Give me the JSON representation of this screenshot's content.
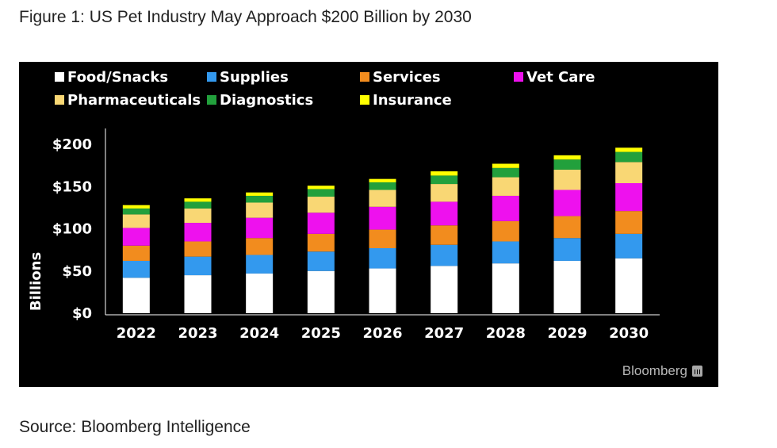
{
  "figure_title": "Figure 1: US Pet Industry May Approach $200 Billion by 2030",
  "source": "Source: Bloomberg Intelligence",
  "brand": "Bloomberg",
  "chart_data": {
    "type": "bar",
    "stacked": true,
    "title": "",
    "xlabel": "",
    "ylabel": "Billions",
    "ylim": [
      0,
      200
    ],
    "y_ticks": [
      0,
      50,
      100,
      150,
      200
    ],
    "y_tick_labels": [
      "$0",
      "$50",
      "$100",
      "$150",
      "$200"
    ],
    "categories": [
      "2022",
      "2023",
      "2024",
      "2025",
      "2026",
      "2027",
      "2028",
      "2029",
      "2030"
    ],
    "legend_position": "top",
    "series": [
      {
        "name": "Food/Snacks",
        "color": "#ffffff",
        "values": [
          42,
          45,
          47,
          50,
          53,
          56,
          59,
          62,
          65
        ]
      },
      {
        "name": "Supplies",
        "color": "#3399ee",
        "values": [
          20,
          22,
          22,
          23,
          24,
          25,
          26,
          27,
          29
        ]
      },
      {
        "name": "Services",
        "color": "#f28c1e",
        "values": [
          18,
          18,
          20,
          21,
          22,
          23,
          24,
          26,
          27
        ]
      },
      {
        "name": "Vet Care",
        "color": "#ee11ee",
        "values": [
          21,
          22,
          24,
          25,
          27,
          28,
          30,
          31,
          33
        ]
      },
      {
        "name": "Pharmaceuticals",
        "color": "#f9d774",
        "values": [
          16,
          17,
          18,
          19,
          20,
          21,
          22,
          24,
          25
        ]
      },
      {
        "name": "Diagnostics",
        "color": "#22a03c",
        "values": [
          7,
          8,
          8,
          9,
          9,
          10,
          11,
          12,
          12
        ]
      },
      {
        "name": "Insurance",
        "color": "#ffff00",
        "values": [
          4,
          4,
          4,
          4,
          4,
          5,
          5,
          5,
          5
        ]
      }
    ]
  }
}
